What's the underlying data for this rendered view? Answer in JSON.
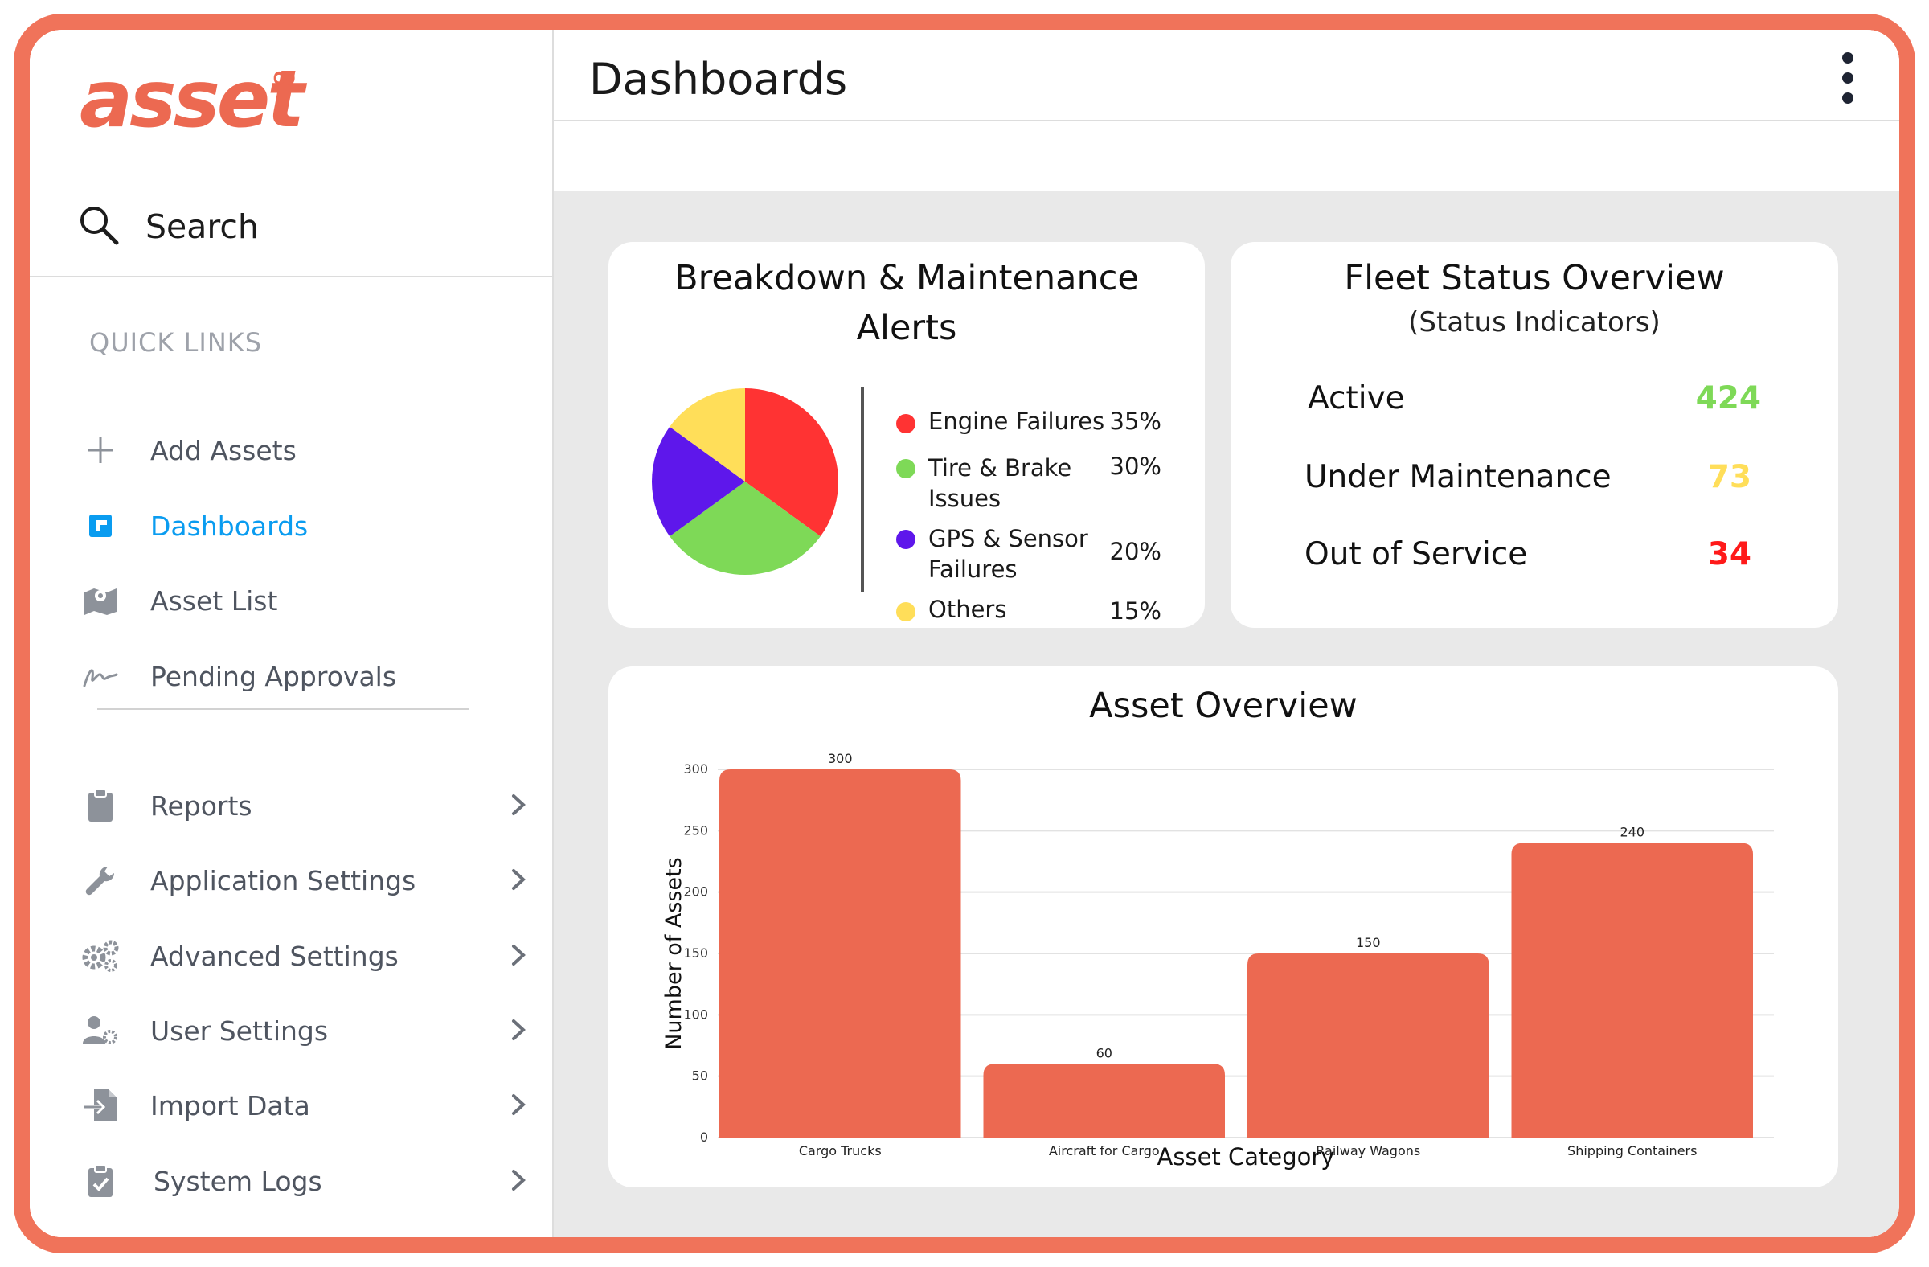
{
  "app": {
    "logo_text": "asset",
    "logo_mark": "∞"
  },
  "sidebar": {
    "search_label": "Search",
    "quick_links_heading": "QUICK LINKS",
    "quick_links": [
      {
        "label": "Add Assets",
        "icon": "plus-icon"
      },
      {
        "label": "Dashboards",
        "icon": "dashboard-icon",
        "active": true
      },
      {
        "label": "Asset List",
        "icon": "map-icon"
      },
      {
        "label": "Pending Approvals",
        "icon": "signature-icon"
      }
    ],
    "menu": [
      {
        "label": "Reports",
        "icon": "clipboard-icon"
      },
      {
        "label": "Application Settings",
        "icon": "wrench-icon"
      },
      {
        "label": "Advanced Settings",
        "icon": "gears-icon"
      },
      {
        "label": "User Settings",
        "icon": "user-cog-icon"
      },
      {
        "label": "Import Data",
        "icon": "file-import-icon"
      },
      {
        "label": "System Logs",
        "icon": "clipboard-check-icon"
      }
    ]
  },
  "header": {
    "title": "Dashboards"
  },
  "alerts_card": {
    "title_line1": "Breakdown & Maintenance",
    "title_line2": "Alerts",
    "items": [
      {
        "label_line1": "Engine Failures",
        "label_line2": "",
        "percent": "35%",
        "value": 35,
        "color": "#ff3333"
      },
      {
        "label_line1": "Tire & Brake",
        "label_line2": "Issues",
        "percent": "30%",
        "value": 30,
        "color": "#7ed957"
      },
      {
        "label_line1": "GPS & Sensor",
        "label_line2": "Failures",
        "percent": "20%",
        "value": 20,
        "color": "#5e17eb"
      },
      {
        "label_line1": "Others",
        "label_line2": "",
        "percent": "15%",
        "value": 15,
        "color": "#ffde59"
      }
    ]
  },
  "fleet_card": {
    "title": "Fleet Status Overview",
    "subtitle": "(Status Indicators)",
    "rows": [
      {
        "label": "Active",
        "value": "424",
        "color": "#7ed957"
      },
      {
        "label": "Under Maintenance",
        "value": "73",
        "color": "#ffde59"
      },
      {
        "label": "Out of Service",
        "value": "34",
        "color": "#ff1a1a"
      }
    ]
  },
  "asset_overview": {
    "title": "Asset Overview",
    "chart_data": {
      "type": "bar",
      "categories": [
        "Cargo Trucks",
        "Aircraft for Cargo",
        "Railway Wagons",
        "Shipping Containers"
      ],
      "values": [
        300,
        60,
        150,
        240
      ],
      "value_labels": [
        "300",
        "60",
        "150",
        "240"
      ],
      "xlabel": "Asset Category",
      "ylabel": "Number of Assets",
      "ylim": [
        0,
        300
      ],
      "yticks": [
        "0",
        "50",
        "100",
        "150",
        "200",
        "250",
        "300"
      ],
      "bar_color": "#ec6951",
      "grid": true
    }
  }
}
